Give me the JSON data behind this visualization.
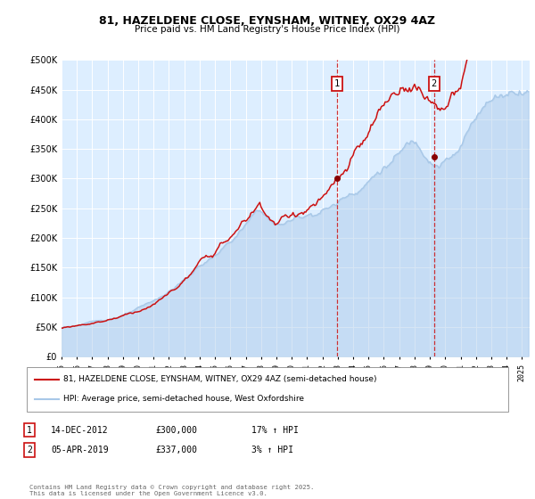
{
  "title": "81, HAZELDENE CLOSE, EYNSHAM, WITNEY, OX29 4AZ",
  "subtitle": "Price paid vs. HM Land Registry's House Price Index (HPI)",
  "legend_line1": "81, HAZELDENE CLOSE, EYNSHAM, WITNEY, OX29 4AZ (semi-detached house)",
  "legend_line2": "HPI: Average price, semi-detached house, West Oxfordshire",
  "transaction1_date": "14-DEC-2012",
  "transaction1_price": "£300,000",
  "transaction1_hpi": "17% ↑ HPI",
  "transaction2_date": "05-APR-2019",
  "transaction2_price": "£337,000",
  "transaction2_hpi": "3% ↑ HPI",
  "transaction1_year": 2012.96,
  "transaction2_year": 2019.27,
  "transaction1_value": 300000,
  "transaction2_value": 337000,
  "hpi_color": "#a8c8e8",
  "price_color": "#cc1111",
  "vline_color": "#cc1111",
  "dot_color": "#880000",
  "plot_bg_color": "#ddeeff",
  "grid_color": "#ffffff",
  "footer": "Contains HM Land Registry data © Crown copyright and database right 2025.\nThis data is licensed under the Open Government Licence v3.0.",
  "ylim": [
    0,
    500000
  ],
  "xmin": 1995,
  "xmax": 2025.5,
  "yticks": [
    0,
    50000,
    100000,
    150000,
    200000,
    250000,
    300000,
    350000,
    400000,
    450000,
    500000
  ]
}
